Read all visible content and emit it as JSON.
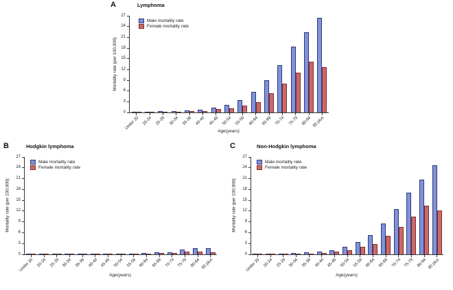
{
  "figure": {
    "background_color": "#ffffff",
    "text_color": "#1a1a1a",
    "axis_color": "#333333"
  },
  "chart_data": [
    {
      "panel_label": "A",
      "title": "Lymphoma",
      "type": "bar",
      "xlabel": "Age(years)",
      "ylabel": "Mortality rate (per 100,000)",
      "ylim": [
        0,
        27
      ],
      "ytick_step": 3,
      "grid": false,
      "legend_position": "top-left",
      "categories": [
        "Under 20",
        "20-24",
        "25-29",
        "30-34",
        "35-39",
        "40-44",
        "45-49",
        "50-54",
        "55-59",
        "60-64",
        "65-69",
        "70-74",
        "75-79",
        "80-84",
        "85 plus"
      ],
      "series": [
        {
          "name": "Male mortality rate",
          "color": "#8093d6",
          "border_color": "#2f3580",
          "values": [
            0.1,
            0.2,
            0.3,
            0.3,
            0.6,
            0.8,
            1.3,
            2.2,
            3.5,
            5.8,
            9.0,
            13.2,
            18.4,
            22.5,
            26.5
          ]
        },
        {
          "name": "Female mortality rate",
          "color": "#cc6868",
          "border_color": "#7a2f2f",
          "values": [
            0.05,
            0.1,
            0.15,
            0.2,
            0.3,
            0.4,
            0.9,
            1.1,
            2.0,
            2.9,
            5.4,
            8.0,
            11.2,
            14.2,
            12.7
          ]
        }
      ]
    },
    {
      "panel_label": "B",
      "title": "Hodgkin lymphoma",
      "type": "bar",
      "xlabel": "Age(years)",
      "ylabel": "Mortality rate (per 100,000)",
      "ylim": [
        0,
        27
      ],
      "ytick_step": 3,
      "grid": false,
      "legend_position": "top-left",
      "categories": [
        "Under 20",
        "20-24",
        "25-29",
        "30-34",
        "35-39",
        "40-44",
        "45-49",
        "50-54",
        "55-59",
        "60-64",
        "65-69",
        "70-74",
        "75-79",
        "80-84",
        "85 plus"
      ],
      "series": [
        {
          "name": "Male mortality rate",
          "color": "#8093d6",
          "border_color": "#2f3580",
          "values": [
            0.05,
            0.08,
            0.08,
            0.08,
            0.1,
            0.1,
            0.12,
            0.15,
            0.2,
            0.3,
            0.55,
            0.6,
            1.3,
            1.8,
            1.8
          ]
        },
        {
          "name": "Female mortality rate",
          "color": "#cc6868",
          "border_color": "#7a2f2f",
          "values": [
            0.02,
            0.04,
            0.04,
            0.04,
            0.05,
            0.05,
            0.08,
            0.1,
            0.1,
            0.2,
            0.3,
            0.45,
            0.7,
            0.8,
            0.5
          ]
        }
      ]
    },
    {
      "panel_label": "C",
      "title": "Non-Hodgkin lymphoma",
      "type": "bar",
      "xlabel": "Age(years)",
      "ylabel": "Mortality rate (per 100,000)",
      "ylim": [
        0,
        27
      ],
      "ytick_step": 3,
      "grid": false,
      "legend_position": "top-left",
      "categories": [
        "Under 20",
        "20-24",
        "25-29",
        "30-34",
        "35-39",
        "40-44",
        "45-49",
        "50-54",
        "55-59",
        "60-64",
        "65-69",
        "70-74",
        "75-79",
        "80-84",
        "85 plus"
      ],
      "series": [
        {
          "name": "Male mortality rate",
          "color": "#8093d6",
          "border_color": "#2f3580",
          "values": [
            0.1,
            0.2,
            0.25,
            0.3,
            0.5,
            0.7,
            1.2,
            2.1,
            3.4,
            5.4,
            8.5,
            12.6,
            17.1,
            20.7,
            24.7
          ]
        },
        {
          "name": "Female mortality rate",
          "color": "#cc6868",
          "border_color": "#7a2f2f",
          "values": [
            0.05,
            0.1,
            0.15,
            0.2,
            0.25,
            0.35,
            0.8,
            1.1,
            2.0,
            2.8,
            5.2,
            7.7,
            10.5,
            13.5,
            12.2
          ]
        }
      ]
    }
  ]
}
